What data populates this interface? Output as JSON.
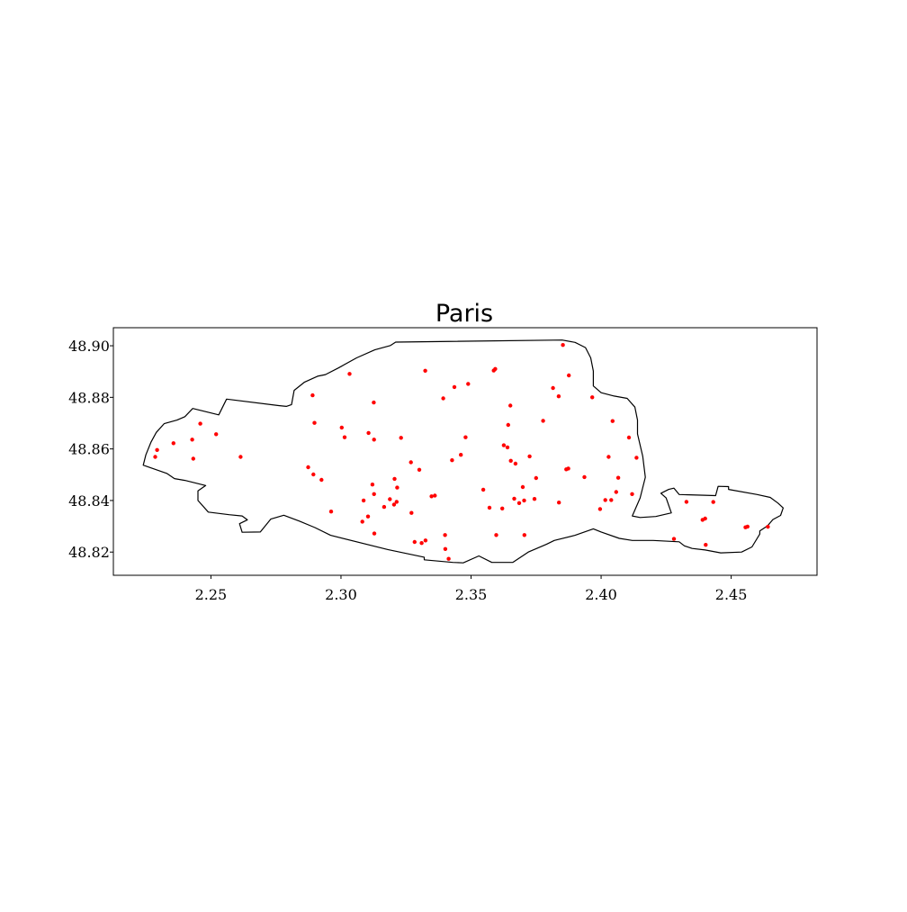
{
  "chart_data": {
    "type": "scatter",
    "title": "Paris",
    "xlabel": "",
    "ylabel": "",
    "xlim": [
      2.2125,
      2.483
    ],
    "ylim": [
      48.811,
      48.907
    ],
    "x_ticks": [
      2.25,
      2.3,
      2.35,
      2.4,
      2.45
    ],
    "x_tick_labels": [
      "2.25",
      "2.30",
      "2.35",
      "2.40",
      "2.45"
    ],
    "y_ticks": [
      48.82,
      48.84,
      48.86,
      48.88,
      48.9
    ],
    "y_tick_labels": [
      "48.82",
      "48.84",
      "48.86",
      "48.88",
      "48.90"
    ],
    "grid": false,
    "point_color": "#ff0000",
    "boundary_color": "#000000",
    "boundary": [
      [
        2.224,
        48.8537
      ],
      [
        2.225,
        48.8577
      ],
      [
        2.227,
        48.8627
      ],
      [
        2.229,
        48.8664
      ],
      [
        2.232,
        48.8698
      ],
      [
        2.237,
        48.8712
      ],
      [
        2.24,
        48.8725
      ],
      [
        2.243,
        48.8757
      ],
      [
        2.253,
        48.8732
      ],
      [
        2.256,
        48.8793
      ],
      [
        2.276,
        48.8768
      ],
      [
        2.279,
        48.8765
      ],
      [
        2.281,
        48.8772
      ],
      [
        2.282,
        48.8827
      ],
      [
        2.286,
        48.8859
      ],
      [
        2.291,
        48.8882
      ],
      [
        2.294,
        48.8888
      ],
      [
        2.299,
        48.8914
      ],
      [
        2.306,
        48.8953
      ],
      [
        2.313,
        48.8984
      ],
      [
        2.319,
        48.9001
      ],
      [
        2.321,
        48.9014
      ],
      [
        2.385,
        48.9022
      ],
      [
        2.39,
        48.9013
      ],
      [
        2.394,
        48.8993
      ],
      [
        2.396,
        48.8953
      ],
      [
        2.397,
        48.8902
      ],
      [
        2.397,
        48.8844
      ],
      [
        2.4,
        48.8818
      ],
      [
        2.405,
        48.8805
      ],
      [
        2.41,
        48.8796
      ],
      [
        2.413,
        48.8762
      ],
      [
        2.414,
        48.8712
      ],
      [
        2.414,
        48.8658
      ],
      [
        2.416,
        48.8572
      ],
      [
        2.417,
        48.849
      ],
      [
        2.415,
        48.841
      ],
      [
        2.412,
        48.834
      ],
      [
        2.415,
        48.8334
      ],
      [
        2.421,
        48.8338
      ],
      [
        2.427,
        48.8352
      ],
      [
        2.425,
        48.841
      ],
      [
        2.423,
        48.8428
      ],
      [
        2.426,
        48.8443
      ],
      [
        2.428,
        48.8448
      ],
      [
        2.43,
        48.8423
      ],
      [
        2.444,
        48.8419
      ],
      [
        2.445,
        48.8455
      ],
      [
        2.449,
        48.8454
      ],
      [
        2.449,
        48.8443
      ],
      [
        2.46,
        48.8423
      ],
      [
        2.465,
        48.8412
      ],
      [
        2.468,
        48.839
      ],
      [
        2.47,
        48.8371
      ],
      [
        2.469,
        48.8342
      ],
      [
        2.466,
        48.8326
      ],
      [
        2.464,
        48.8302
      ],
      [
        2.461,
        48.8282
      ],
      [
        2.461,
        48.827
      ],
      [
        2.458,
        48.822
      ],
      [
        2.454,
        48.82
      ],
      [
        2.446,
        48.8197
      ],
      [
        2.44,
        48.8208
      ],
      [
        2.435,
        48.8214
      ],
      [
        2.432,
        48.8224
      ],
      [
        2.43,
        48.824
      ],
      [
        2.42,
        48.8245
      ],
      [
        2.412,
        48.8245
      ],
      [
        2.407,
        48.8253
      ],
      [
        2.4,
        48.8278
      ],
      [
        2.397,
        48.829
      ],
      [
        2.39,
        48.8265
      ],
      [
        2.382,
        48.8245
      ],
      [
        2.379,
        48.823
      ],
      [
        2.372,
        48.82
      ],
      [
        2.366,
        48.816
      ],
      [
        2.358,
        48.816
      ],
      [
        2.353,
        48.8185
      ],
      [
        2.347,
        48.8158
      ],
      [
        2.343,
        48.816
      ],
      [
        2.332,
        48.817
      ],
      [
        2.332,
        48.818
      ],
      [
        2.318,
        48.821
      ],
      [
        2.296,
        48.8265
      ],
      [
        2.29,
        48.8295
      ],
      [
        2.284,
        48.832
      ],
      [
        2.278,
        48.8343
      ],
      [
        2.273,
        48.8328
      ],
      [
        2.269,
        48.8278
      ],
      [
        2.262,
        48.8277
      ],
      [
        2.261,
        48.831
      ],
      [
        2.264,
        48.8325
      ],
      [
        2.262,
        48.834
      ],
      [
        2.257,
        48.8345
      ],
      [
        2.249,
        48.8355
      ],
      [
        2.245,
        48.84
      ],
      [
        2.245,
        48.8437
      ],
      [
        2.248,
        48.8458
      ],
      [
        2.24,
        48.8478
      ],
      [
        2.236,
        48.8485
      ],
      [
        2.233,
        48.8505
      ],
      [
        2.224,
        48.8537
      ]
    ],
    "points": [
      [
        2.2286,
        48.8569
      ],
      [
        2.2293,
        48.8596
      ],
      [
        2.2356,
        48.8622
      ],
      [
        2.2428,
        48.8636
      ],
      [
        2.2432,
        48.8562
      ],
      [
        2.2459,
        48.8698
      ],
      [
        2.252,
        48.8657
      ],
      [
        2.2614,
        48.8569
      ],
      [
        2.2874,
        48.8529
      ],
      [
        2.2891,
        48.8808
      ],
      [
        2.2894,
        48.8501
      ],
      [
        2.2898,
        48.8701
      ],
      [
        2.2925,
        48.848
      ],
      [
        2.2962,
        48.8357
      ],
      [
        2.3003,
        48.8683
      ],
      [
        2.3014,
        48.8645
      ],
      [
        2.3033,
        48.8891
      ],
      [
        2.3082,
        48.8318
      ],
      [
        2.3087,
        48.84
      ],
      [
        2.3104,
        48.8338
      ],
      [
        2.3106,
        48.8662
      ],
      [
        2.3121,
        48.8462
      ],
      [
        2.3127,
        48.8425
      ],
      [
        2.3127,
        48.8636
      ],
      [
        2.3126,
        48.878
      ],
      [
        2.3128,
        48.8272
      ],
      [
        2.3166,
        48.8375
      ],
      [
        2.3188,
        48.8405
      ],
      [
        2.3204,
        48.8384
      ],
      [
        2.3206,
        48.8484
      ],
      [
        2.3214,
        48.8395
      ],
      [
        2.3216,
        48.845
      ],
      [
        2.3231,
        48.8643
      ],
      [
        2.3269,
        48.8548
      ],
      [
        2.3271,
        48.8352
      ],
      [
        2.3283,
        48.8239
      ],
      [
        2.3301,
        48.8519
      ],
      [
        2.331,
        48.8235
      ],
      [
        2.3324,
        48.8903
      ],
      [
        2.3325,
        48.8245
      ],
      [
        2.3348,
        48.8416
      ],
      [
        2.3361,
        48.8419
      ],
      [
        2.3393,
        48.8796
      ],
      [
        2.34,
        48.8266
      ],
      [
        2.3401,
        48.8212
      ],
      [
        2.3414,
        48.8174
      ],
      [
        2.3427,
        48.8556
      ],
      [
        2.3436,
        48.884
      ],
      [
        2.3461,
        48.8577
      ],
      [
        2.3479,
        48.8645
      ],
      [
        2.3489,
        48.8852
      ],
      [
        2.3547,
        48.8442
      ],
      [
        2.3571,
        48.8372
      ],
      [
        2.3587,
        48.8904
      ],
      [
        2.3593,
        48.891
      ],
      [
        2.3597,
        48.8266
      ],
      [
        2.362,
        48.8369
      ],
      [
        2.3626,
        48.8614
      ],
      [
        2.364,
        48.8606
      ],
      [
        2.3643,
        48.8693
      ],
      [
        2.3651,
        48.8768
      ],
      [
        2.3653,
        48.8554
      ],
      [
        2.3666,
        48.8407
      ],
      [
        2.3671,
        48.8543
      ],
      [
        2.3685,
        48.839
      ],
      [
        2.3699,
        48.8452
      ],
      [
        2.3704,
        48.84
      ],
      [
        2.3705,
        48.8266
      ],
      [
        2.3725,
        48.8571
      ],
      [
        2.3744,
        48.8406
      ],
      [
        2.375,
        48.8487
      ],
      [
        2.3777,
        48.8709
      ],
      [
        2.3815,
        48.8836
      ],
      [
        2.3837,
        48.8804
      ],
      [
        2.3838,
        48.8392
      ],
      [
        2.3853,
        48.9003
      ],
      [
        2.3866,
        48.8521
      ],
      [
        2.3874,
        48.8524
      ],
      [
        2.3876,
        48.8885
      ],
      [
        2.3936,
        48.8491
      ],
      [
        2.3966,
        48.88
      ],
      [
        2.3996,
        48.8367
      ],
      [
        2.4016,
        48.8402
      ],
      [
        2.4029,
        48.8569
      ],
      [
        2.4039,
        48.8402
      ],
      [
        2.4044,
        48.8708
      ],
      [
        2.4058,
        48.8433
      ],
      [
        2.4066,
        48.8488
      ],
      [
        2.4107,
        48.8644
      ],
      [
        2.4119,
        48.8425
      ],
      [
        2.4136,
        48.8566
      ],
      [
        2.428,
        48.8251
      ],
      [
        2.4328,
        48.8395
      ],
      [
        2.439,
        48.8325
      ],
      [
        2.44,
        48.833
      ],
      [
        2.4402,
        48.8228
      ],
      [
        2.4431,
        48.8394
      ],
      [
        2.4555,
        48.8296
      ],
      [
        2.4563,
        48.8299
      ],
      [
        2.4641,
        48.8298
      ]
    ]
  }
}
